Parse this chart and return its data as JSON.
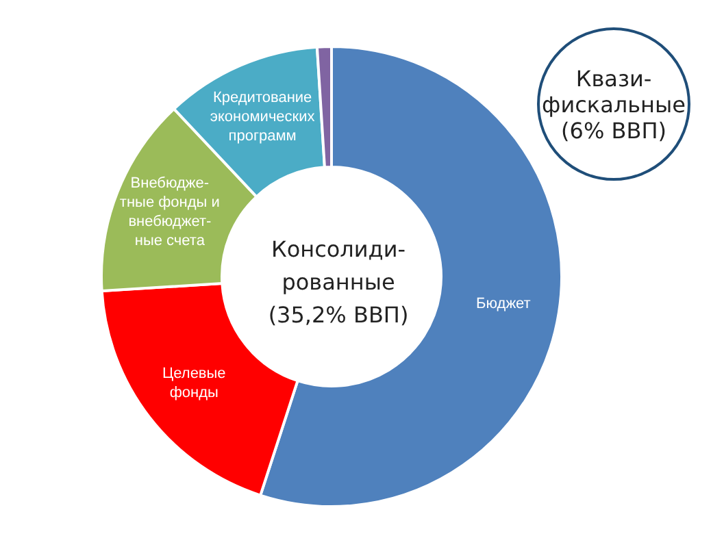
{
  "chart_data": {
    "type": "donut",
    "title": "Консолиди-\nрованные\n(35,2% ВВП)",
    "categories": [
      "Бюджет",
      "Целевые\nфонды",
      "Внебюдже-\nтные фонды и\nвнебюджет-\nные счета",
      "Кредитование\nэкономических\nпрограмм",
      null
    ],
    "values": [
      55,
      19,
      14,
      11,
      1
    ],
    "colors": [
      "#4f81bd",
      "#ff0000",
      "#9bbb59",
      "#4bacc6",
      "#8064a2"
    ],
    "annotations": [
      "Квази-\nфискальные\n(6% ВВП)"
    ],
    "legend": false
  }
}
